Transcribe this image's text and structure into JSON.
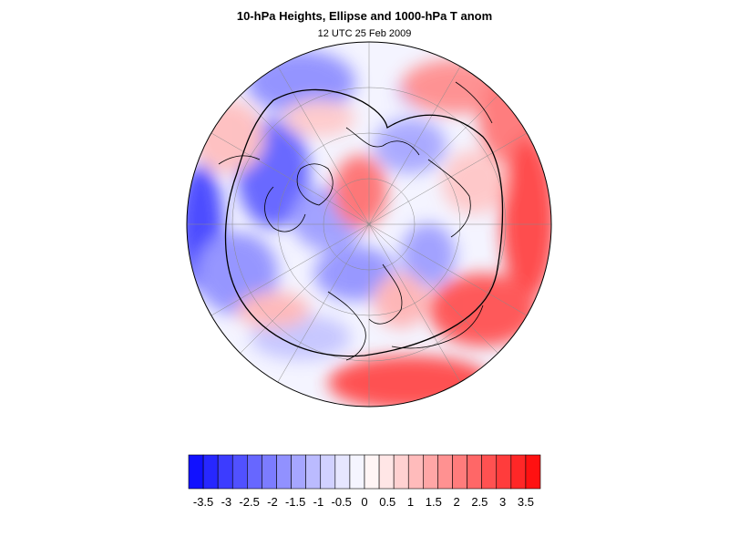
{
  "title": "10-hPa Heights, Ellipse and 1000-hPa T anom",
  "subtitle": "12 UTC 25 Feb 2009",
  "map": {
    "projection": "polar-stereographic",
    "hemisphere": "northern",
    "field": "1000-hPa T anom",
    "contour": "ellipse",
    "colormap": "blue-white-red"
  },
  "colorbar": {
    "colors": [
      "#1111ff",
      "#2727ff",
      "#3c3cff",
      "#5151ff",
      "#6767ff",
      "#7c7cff",
      "#9191ff",
      "#a6a6ff",
      "#bbbbff",
      "#d1d1ff",
      "#e6e6ff",
      "#f5f5ff",
      "#fff5f5",
      "#ffe6e6",
      "#ffd1d1",
      "#ffbbbb",
      "#ffa6a6",
      "#ff9191",
      "#ff7c7c",
      "#ff6767",
      "#ff5151",
      "#ff3c3c",
      "#ff2727",
      "#ff1111"
    ],
    "tick_labels": [
      "-3.5",
      "-3",
      "-2.5",
      "-2",
      "-1.5",
      "-1",
      "-0.5",
      "0",
      "0.5",
      "1",
      "1.5",
      "2",
      "2.5",
      "3",
      "3.5"
    ]
  }
}
